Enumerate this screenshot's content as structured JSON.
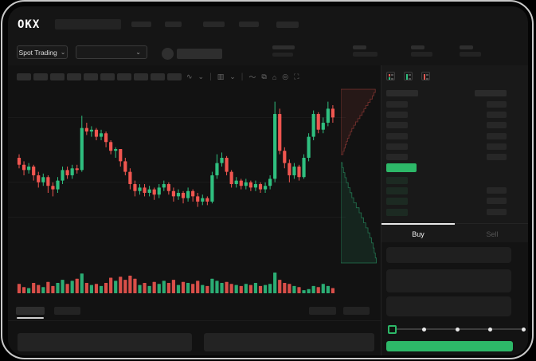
{
  "brand": {
    "logo_text": "OKX"
  },
  "subnav": {
    "market_selector": {
      "label": "Spot Trading",
      "chevron": "⌄"
    },
    "pair_dropdown": {
      "chevron": "⌄"
    }
  },
  "toolbar": {
    "timeframe_placeholder_count": 10,
    "icons": [
      {
        "name": "line-type-icon",
        "glyph": "∿"
      },
      {
        "name": "line-type-chevron-icon",
        "glyph": "⌄"
      },
      {
        "name": "sep",
        "glyph": "|"
      },
      {
        "name": "candle-type-icon",
        "glyph": "▥"
      },
      {
        "name": "candle-type-chevron-icon",
        "glyph": "⌄"
      },
      {
        "name": "sep",
        "glyph": "|"
      },
      {
        "name": "indicator-icon",
        "glyph": "〜"
      },
      {
        "name": "compare-icon",
        "glyph": "⧉"
      },
      {
        "name": "snapshot-icon",
        "glyph": "⌂"
      },
      {
        "name": "settings-icon",
        "glyph": "◎"
      },
      {
        "name": "fullscreen-icon",
        "glyph": "⛶"
      }
    ]
  },
  "chart_data": {
    "type": "candlestick",
    "title": "",
    "xlabel": "",
    "ylabel": "",
    "axes_visible": false,
    "grid_levels": [
      83,
      46,
      26
    ],
    "value_scale": "relative 0-100 (no numeric axis shown in UI)",
    "colors": {
      "up": "#2fbf7f",
      "down": "#f05650"
    },
    "candles_ohlc": [
      [
        60,
        62,
        54,
        56
      ],
      [
        56,
        58,
        50,
        53
      ],
      [
        53,
        57,
        51,
        55
      ],
      [
        55,
        56,
        47,
        50
      ],
      [
        50,
        52,
        43,
        46
      ],
      [
        46,
        51,
        44,
        49
      ],
      [
        49,
        50,
        40,
        44
      ],
      [
        44,
        46,
        38,
        42
      ],
      [
        42,
        49,
        40,
        47
      ],
      [
        47,
        55,
        45,
        53
      ],
      [
        53,
        55,
        48,
        50
      ],
      [
        50,
        56,
        48,
        54
      ],
      [
        54,
        56,
        51,
        53
      ],
      [
        53,
        84,
        52,
        77
      ],
      [
        77,
        80,
        73,
        75
      ],
      [
        75,
        78,
        72,
        76
      ],
      [
        76,
        77,
        70,
        72
      ],
      [
        72,
        76,
        70,
        74
      ],
      [
        74,
        75,
        66,
        69
      ],
      [
        69,
        70,
        62,
        64
      ],
      [
        64,
        66,
        60,
        65
      ],
      [
        65,
        65,
        55,
        58
      ],
      [
        58,
        60,
        50,
        52
      ],
      [
        52,
        54,
        42,
        45
      ],
      [
        45,
        47,
        38,
        41
      ],
      [
        41,
        45,
        39,
        43
      ],
      [
        43,
        45,
        38,
        40
      ],
      [
        40,
        44,
        38,
        42
      ],
      [
        42,
        43,
        36,
        39
      ],
      [
        39,
        45,
        37,
        43
      ],
      [
        43,
        47,
        41,
        45
      ],
      [
        45,
        46,
        39,
        41
      ],
      [
        41,
        43,
        35,
        38
      ],
      [
        38,
        42,
        36,
        40
      ],
      [
        40,
        41,
        34,
        37
      ],
      [
        37,
        43,
        35,
        41
      ],
      [
        41,
        42,
        35,
        38
      ],
      [
        38,
        40,
        32,
        35
      ],
      [
        35,
        39,
        33,
        37
      ],
      [
        37,
        38,
        33,
        35
      ],
      [
        35,
        52,
        34,
        50
      ],
      [
        50,
        62,
        48,
        57
      ],
      [
        57,
        63,
        55,
        60
      ],
      [
        60,
        61,
        50,
        52
      ],
      [
        52,
        53,
        43,
        45
      ],
      [
        45,
        49,
        43,
        47
      ],
      [
        47,
        48,
        42,
        44
      ],
      [
        44,
        48,
        42,
        46
      ],
      [
        46,
        47,
        41,
        43
      ],
      [
        43,
        47,
        41,
        45
      ],
      [
        45,
        46,
        40,
        42
      ],
      [
        42,
        46,
        40,
        44
      ],
      [
        44,
        50,
        42,
        48
      ],
      [
        48,
        92,
        46,
        85
      ],
      [
        85,
        88,
        62,
        64
      ],
      [
        64,
        66,
        54,
        57
      ],
      [
        57,
        59,
        46,
        50
      ],
      [
        50,
        57,
        48,
        55
      ],
      [
        55,
        56,
        47,
        49
      ],
      [
        49,
        62,
        48,
        60
      ],
      [
        60,
        74,
        58,
        72
      ],
      [
        72,
        87,
        70,
        85
      ],
      [
        85,
        86,
        74,
        76
      ],
      [
        76,
        83,
        74,
        80
      ],
      [
        80,
        92,
        78,
        88
      ],
      [
        88,
        90,
        80,
        83
      ]
    ],
    "volumes": [
      0.45,
      0.3,
      0.25,
      0.5,
      0.4,
      0.3,
      0.55,
      0.35,
      0.5,
      0.65,
      0.45,
      0.6,
      0.7,
      0.95,
      0.5,
      0.4,
      0.45,
      0.35,
      0.5,
      0.75,
      0.6,
      0.8,
      0.65,
      0.85,
      0.7,
      0.4,
      0.5,
      0.35,
      0.55,
      0.45,
      0.6,
      0.5,
      0.65,
      0.4,
      0.55,
      0.5,
      0.45,
      0.6,
      0.4,
      0.35,
      0.7,
      0.6,
      0.5,
      0.55,
      0.45,
      0.4,
      0.35,
      0.45,
      0.4,
      0.5,
      0.35,
      0.4,
      0.45,
      1.0,
      0.65,
      0.5,
      0.45,
      0.35,
      0.3,
      0.15,
      0.2,
      0.35,
      0.3,
      0.45,
      0.35,
      0.25
    ],
    "depth": {
      "orientation": "vertical",
      "asks_cumulative": [
        0.06,
        0.09,
        0.12,
        0.15,
        0.18,
        0.22,
        0.26,
        0.3,
        0.35,
        0.4,
        0.46,
        0.52,
        0.58,
        0.63,
        0.68,
        0.74,
        0.8,
        0.86,
        0.9,
        0.94
      ],
      "bids_cumulative": [
        0.04,
        0.07,
        0.11,
        0.15,
        0.2,
        0.25,
        0.3,
        0.35,
        0.42,
        0.5,
        0.56,
        0.62,
        0.68,
        0.74,
        0.79,
        0.84,
        0.88,
        0.91,
        0.94,
        0.97
      ],
      "ask_color": "#f05650",
      "bid_color": "#2fbf7f"
    }
  },
  "order_book": {
    "view_toggles": [
      {
        "name": "book-view-both-icon"
      },
      {
        "name": "book-view-bids-icon"
      },
      {
        "name": "book-view-asks-icon"
      }
    ],
    "ask_skeleton_rows": 6,
    "bid_skeleton_rows": 4,
    "bid_right_skeleton_rows": 3,
    "price_highlight_color": "#2db868"
  },
  "trade_panel": {
    "tabs": [
      {
        "label": "Buy",
        "active": true
      },
      {
        "label": "Sell",
        "active": false
      }
    ],
    "slider": {
      "stop_count": 5,
      "selected_index": 0,
      "accent": "#2db868"
    },
    "submit_button": {
      "label": "",
      "color": "#2db868"
    }
  },
  "colors": {
    "app_bg": "#151515",
    "chart_bg": "#121212",
    "panel_bg": "#191919",
    "accent_green": "#2db868",
    "candle_up": "#2fbf7f",
    "candle_down": "#f05650",
    "active_tab_indicator": "#e8e8e8"
  }
}
